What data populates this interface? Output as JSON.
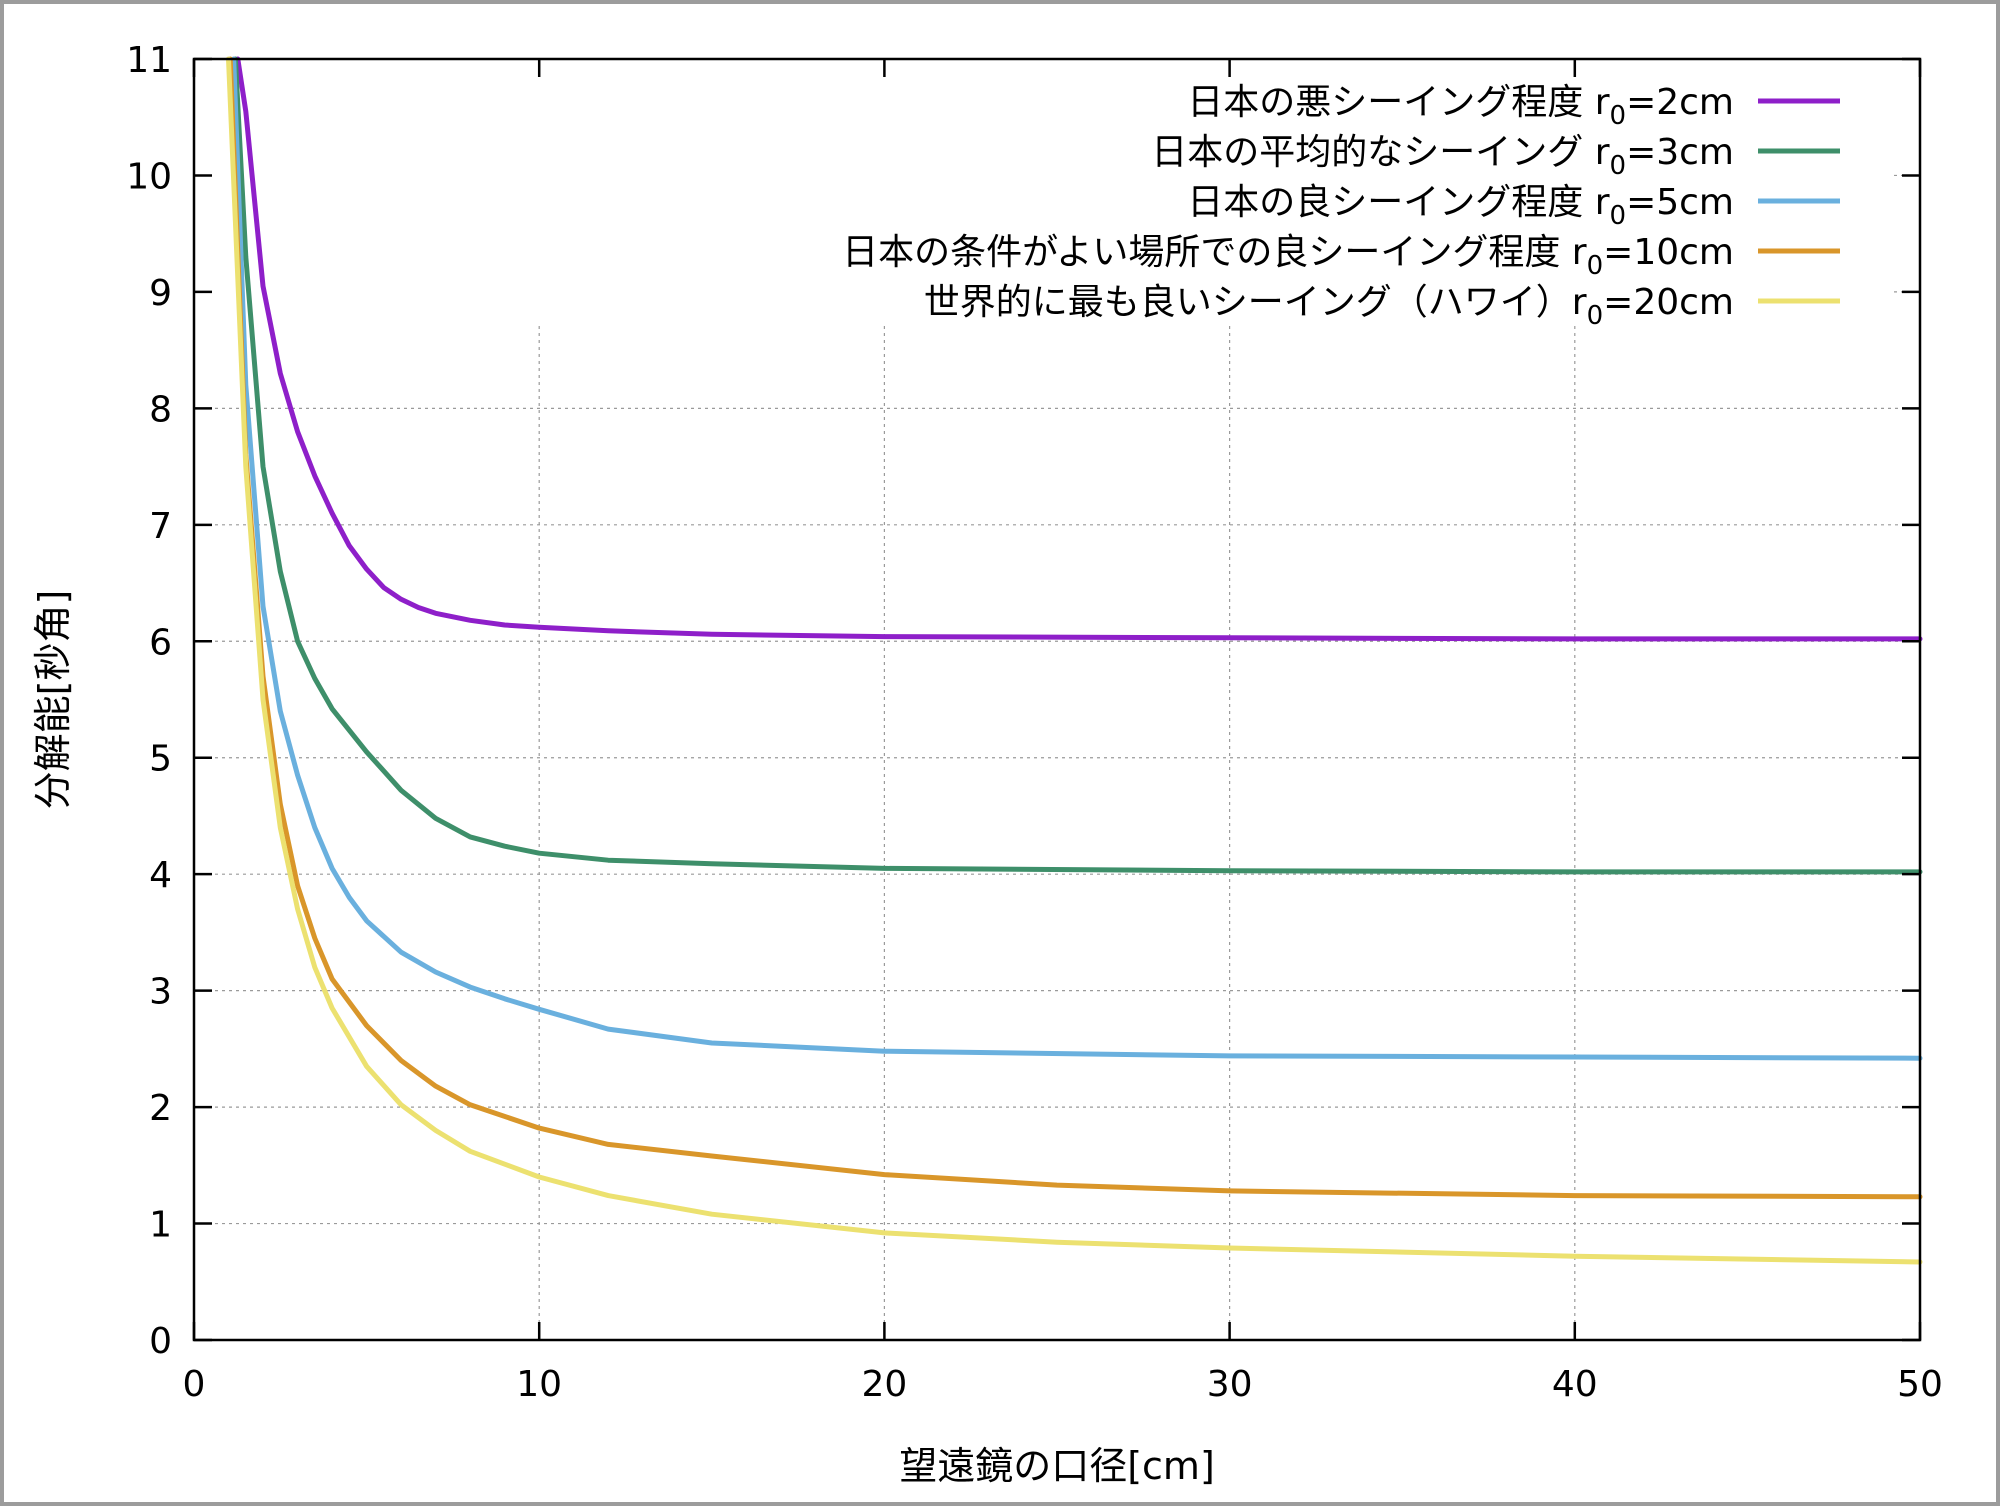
{
  "chart_data": {
    "type": "line",
    "title": "",
    "xlabel": "望遠鏡の口径[cm]",
    "ylabel": "分解能[秒角]",
    "xlim": [
      0,
      50
    ],
    "ylim": [
      0,
      11
    ],
    "xticks": [
      0,
      10,
      20,
      30,
      40,
      50
    ],
    "yticks": [
      0,
      1,
      2,
      3,
      4,
      5,
      6,
      7,
      8,
      9,
      10,
      11
    ],
    "grid": true,
    "legend_position": "top-right",
    "series": [
      {
        "name": "日本の悪シーイング程度 r0=2cm",
        "label_main": "日本の悪シーイング程度 r",
        "label_sub": "0",
        "label_tail": "=2cm",
        "color": "#8e1fc9",
        "x": [
          1.27,
          1.5,
          2,
          2.5,
          3,
          3.5,
          4,
          4.5,
          5,
          5.5,
          6,
          6.5,
          7,
          8,
          9,
          10,
          12,
          15,
          20,
          30,
          40,
          50
        ],
        "y": [
          11,
          10.55,
          9.05,
          8.3,
          7.8,
          7.42,
          7.1,
          6.82,
          6.62,
          6.46,
          6.36,
          6.29,
          6.24,
          6.18,
          6.14,
          6.12,
          6.09,
          6.06,
          6.04,
          6.03,
          6.02,
          6.02
        ]
      },
      {
        "name": "日本の平均的なシーイング r0=3cm",
        "label_main": "日本の平均的なシーイング r",
        "label_sub": "0",
        "label_tail": "=3cm",
        "color": "#3e8f6a",
        "x": [
          1.2,
          1.5,
          2,
          2.5,
          3,
          3.5,
          4,
          5,
          6,
          7,
          8,
          9,
          10,
          12,
          15,
          20,
          30,
          40,
          50
        ],
        "y": [
          11,
          9.3,
          7.5,
          6.6,
          6.0,
          5.68,
          5.42,
          5.05,
          4.72,
          4.48,
          4.32,
          4.24,
          4.18,
          4.12,
          4.09,
          4.05,
          4.03,
          4.02,
          4.02
        ]
      },
      {
        "name": "日本の良シーイング程度 r0=5cm",
        "label_main": "日本の良シーイング程度 r",
        "label_sub": "0",
        "label_tail": "=5cm",
        "color": "#6ab0de",
        "x": [
          1.15,
          1.5,
          2,
          2.5,
          3,
          3.5,
          4,
          4.5,
          5,
          6,
          7,
          8,
          9,
          10,
          12,
          15,
          20,
          30,
          40,
          50
        ],
        "y": [
          11,
          8.2,
          6.3,
          5.4,
          4.85,
          4.4,
          4.05,
          3.8,
          3.6,
          3.33,
          3.16,
          3.03,
          2.93,
          2.84,
          2.67,
          2.55,
          2.48,
          2.44,
          2.43,
          2.42
        ]
      },
      {
        "name": "日本の条件がよい場所での良シーイング程度 r0=10cm",
        "label_main": "日本の条件がよい場所での良シーイング程度 r",
        "label_sub": "0",
        "label_tail": "=10cm",
        "color": "#d9962a",
        "x": [
          1.05,
          1.5,
          2,
          2.5,
          3,
          3.5,
          4,
          5,
          6,
          7,
          8,
          10,
          12,
          15,
          20,
          25,
          30,
          40,
          50
        ],
        "y": [
          11,
          7.6,
          5.7,
          4.6,
          3.9,
          3.45,
          3.1,
          2.7,
          2.4,
          2.18,
          2.02,
          1.82,
          1.68,
          1.58,
          1.42,
          1.33,
          1.28,
          1.24,
          1.23
        ]
      },
      {
        "name": "世界的に最も良いシーイング（ハワイ）r0=20cm",
        "label_main": "世界的に最も良いシーイング（ハワイ）r",
        "label_sub": "0",
        "label_tail": "=20cm",
        "color": "#ece170",
        "x": [
          1.0,
          1.5,
          2,
          2.5,
          3,
          3.5,
          4,
          5,
          6,
          7,
          8,
          10,
          12,
          15,
          20,
          25,
          30,
          40,
          50
        ],
        "y": [
          11,
          7.5,
          5.5,
          4.4,
          3.7,
          3.2,
          2.85,
          2.35,
          2.02,
          1.8,
          1.62,
          1.4,
          1.24,
          1.08,
          0.92,
          0.84,
          0.79,
          0.72,
          0.67
        ]
      }
    ]
  }
}
